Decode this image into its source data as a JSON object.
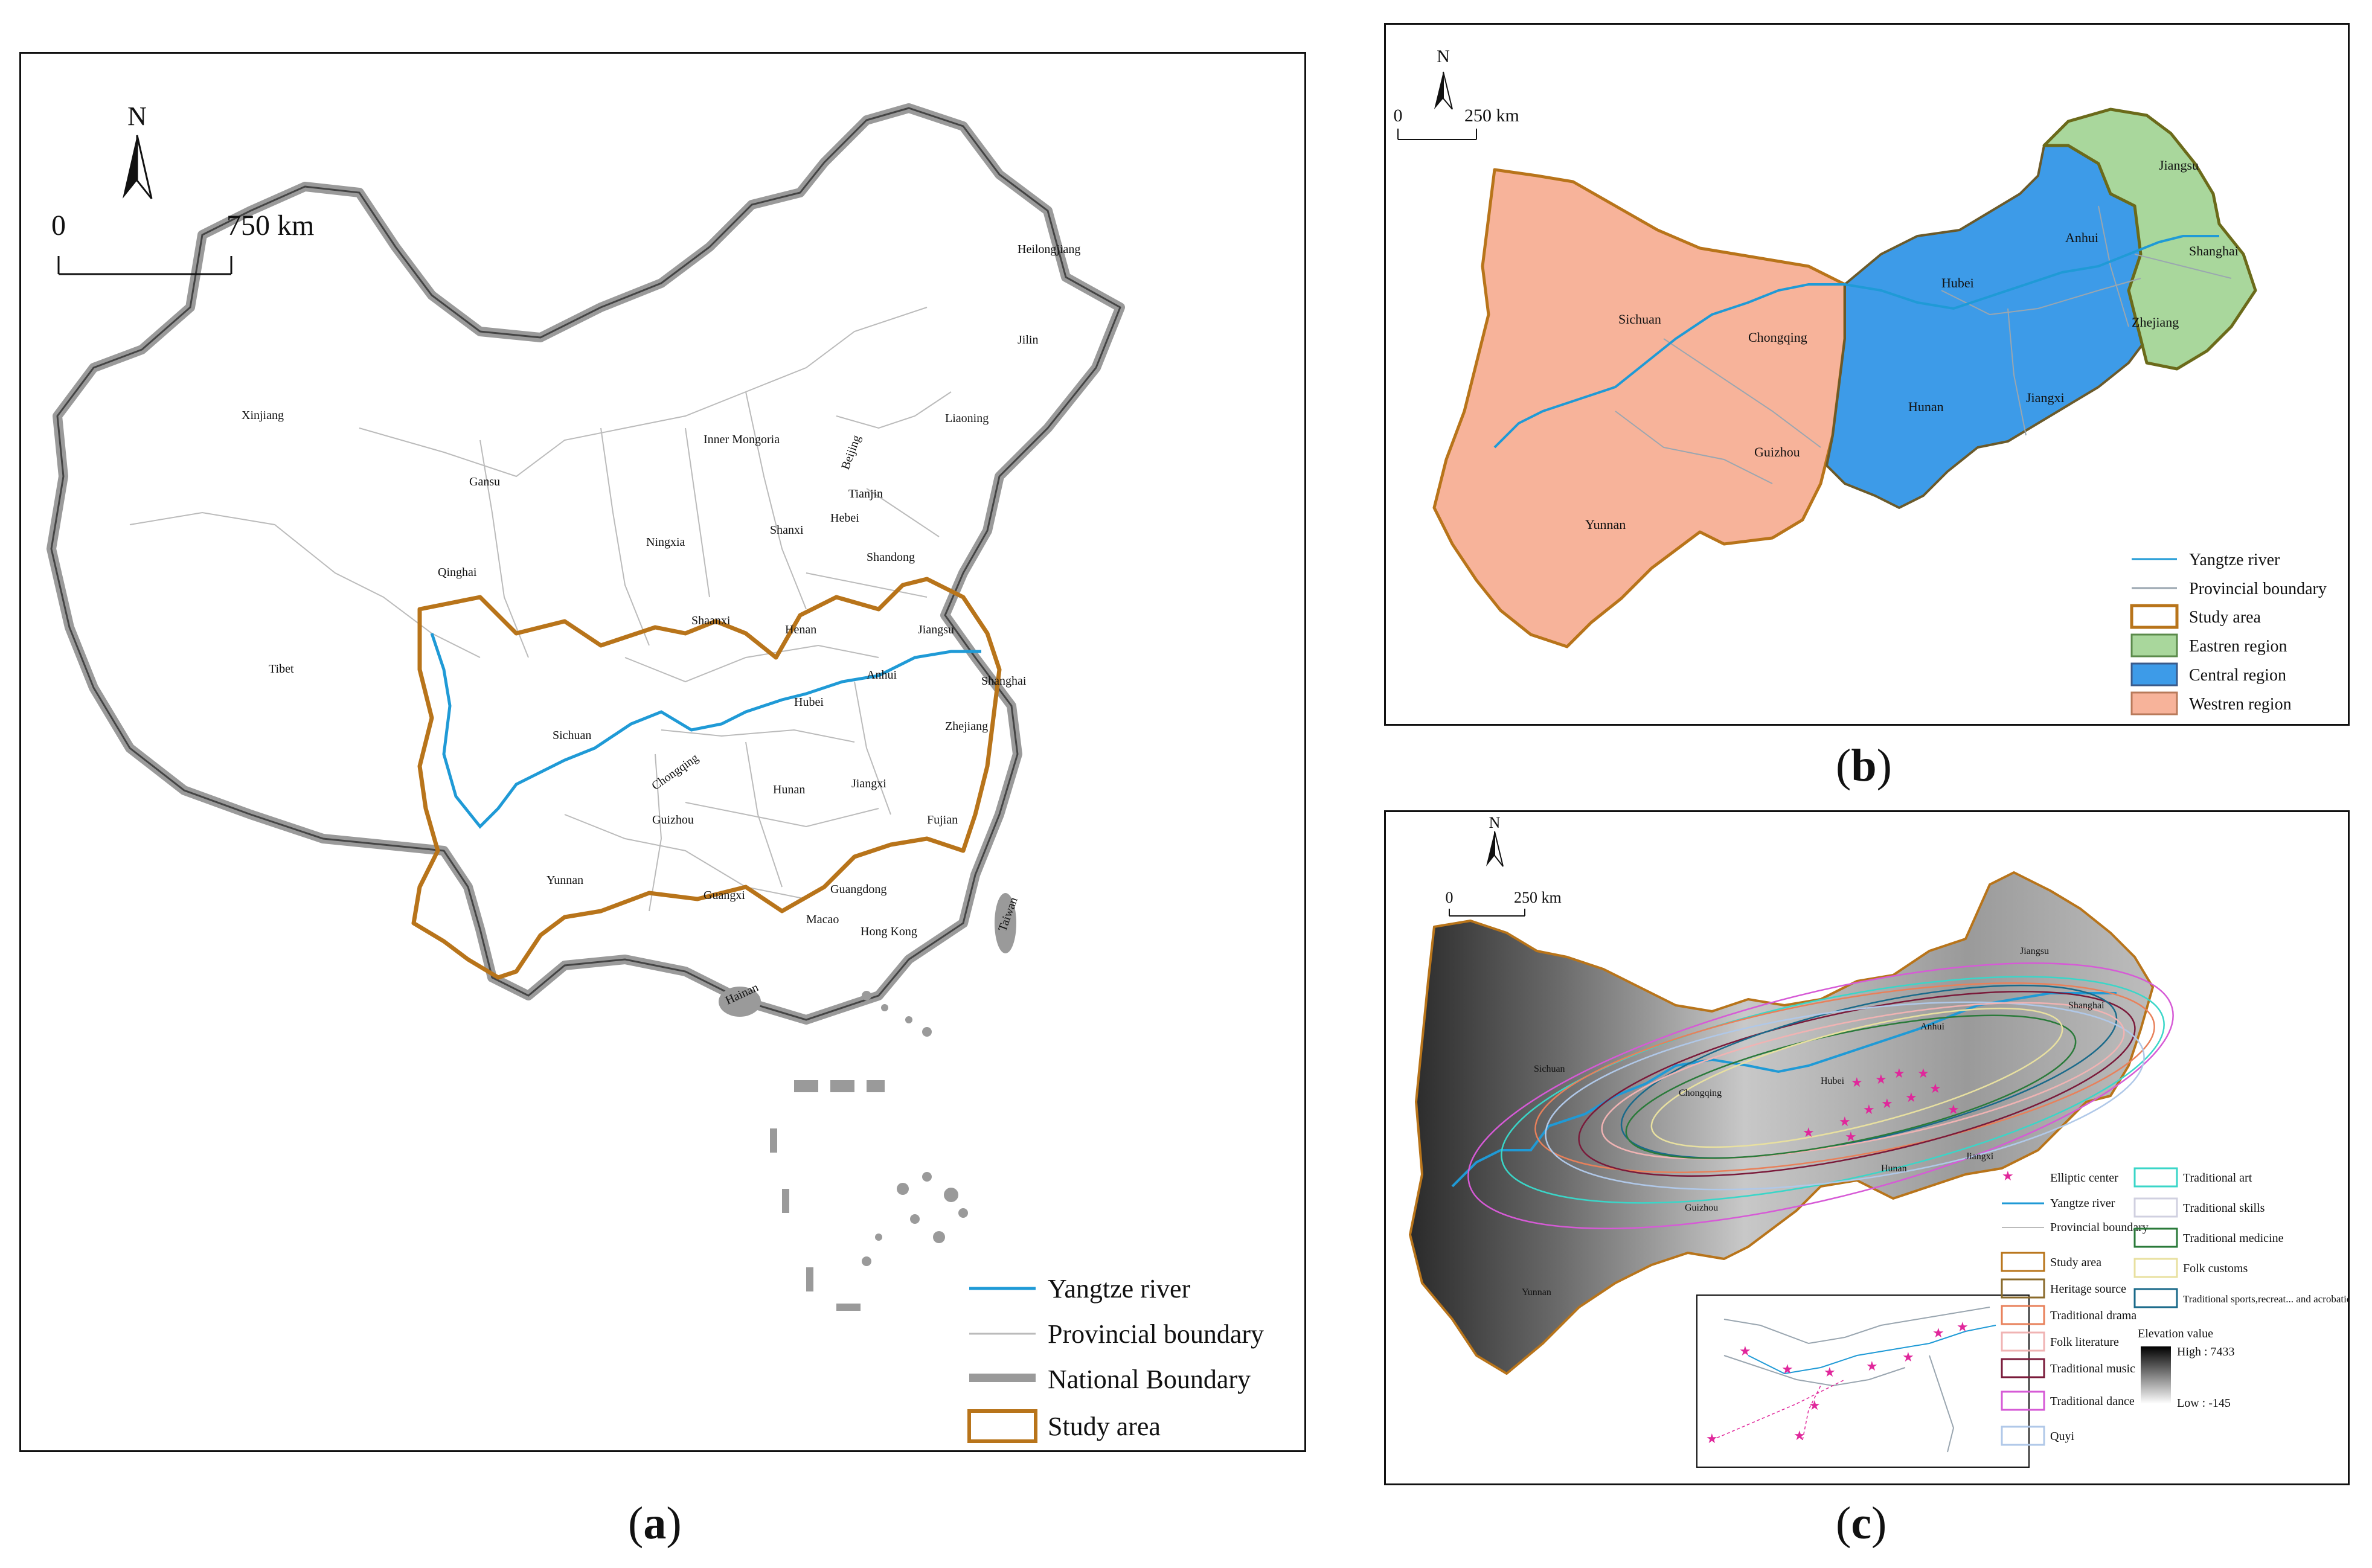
{
  "captions": {
    "a_open": "(",
    "a_letter": "a",
    "a_close": ")",
    "b_open": "(",
    "b_letter": "b",
    "b_close": ")",
    "c_open": "(",
    "c_letter": "c",
    "c_close": ")"
  },
  "panel_a": {
    "north": "N",
    "scale_zero": "0",
    "scale_end": "750 km",
    "provinces": [
      "Heilongjiang",
      "Jilin",
      "Liaoning",
      "Xinjiang",
      "Inner Mongoria",
      "Beijing",
      "Tianjin",
      "Gansu",
      "Hebei",
      "Ningxia",
      "Shanxi",
      "Shandong",
      "Qinghai",
      "Shaanxi",
      "Henan",
      "Jiangsu",
      "Tibet",
      "Anhui",
      "Shanghai",
      "Sichuan",
      "Hubei",
      "Zhejiang",
      "Chongqing",
      "Hunan",
      "Jiangxi",
      "Guizhou",
      "Fujian",
      "Yunnan",
      "Guangxi",
      "Guangdong",
      "Taiwan",
      "Macao",
      "Hong Kong",
      "Hainan"
    ],
    "legend": [
      {
        "label": "Yangtze river",
        "color": "#1f9ad6"
      },
      {
        "label": "Provincial boundary",
        "color": "#bbbbbb"
      },
      {
        "label": "National Boundary",
        "color": "#8f8f8f"
      },
      {
        "label": "Study area",
        "color": "#b8741a"
      }
    ]
  },
  "panel_b": {
    "north": "N",
    "scale_zero": "0",
    "scale_end": "250 km",
    "provinces": [
      "Jiangsu",
      "Anhui",
      "Shanghai",
      "Hubei",
      "Sichuan",
      "Chongqing",
      "Zhejiang",
      "Hunan",
      "Jiangxi",
      "Guizhou",
      "Yunnan"
    ],
    "legend": [
      {
        "label": "Yangtze river",
        "color": "#1f9ad6"
      },
      {
        "label": "Provincial boundary",
        "color": "#9aa6b0"
      },
      {
        "label": "Study area",
        "color": "#b8741a"
      },
      {
        "label": "Eastren region",
        "color": "#a9d79c"
      },
      {
        "label": "Central region",
        "color": "#3d9be8"
      },
      {
        "label": "Westren region",
        "color": "#f7b39a"
      }
    ]
  },
  "panel_c": {
    "north": "N",
    "scale_zero": "0",
    "scale_end": "250 km",
    "provinces": [
      "Jiangsu",
      "Shanghai",
      "Anhui",
      "Sichuan",
      "Chongqing",
      "Hubei",
      "Hunan",
      "Jiangxi",
      "Guizhou",
      "Yunnan"
    ],
    "legend_left": [
      {
        "label": "Elliptic center",
        "color": "#e0279b"
      },
      {
        "label": "Yangtze river",
        "color": "#1f9ad6"
      },
      {
        "label": "Provincial boundary",
        "color": "#bbbbbb"
      },
      {
        "label": "Study area",
        "color": "#b8741a"
      },
      {
        "label": "Heritage source",
        "color": "#8a6a2a"
      },
      {
        "label": "Traditional drama",
        "color": "#e8805a"
      },
      {
        "label": "Folk literature",
        "color": "#f0b3b3"
      },
      {
        "label": "Traditional music",
        "color": "#7a1a3a"
      },
      {
        "label": "Traditional dance",
        "color": "#d65ad6"
      },
      {
        "label": "Quyi",
        "color": "#b0c8e8"
      }
    ],
    "legend_right": [
      {
        "label": "Traditional art",
        "color": "#3ad6c8"
      },
      {
        "label": "Traditional skills",
        "color": "#d0d0e0"
      },
      {
        "label": "Traditional medicine",
        "color": "#2a7a3a"
      },
      {
        "label": "Folk customs",
        "color": "#e8e0a0"
      },
      {
        "label": "Traditional sports,recreat... and acrobatics",
        "color": "#1a6a8a"
      }
    ],
    "elevation_title": "Elevation value",
    "elevation_high": "High : 7433",
    "elevation_low": "Low : -145"
  }
}
